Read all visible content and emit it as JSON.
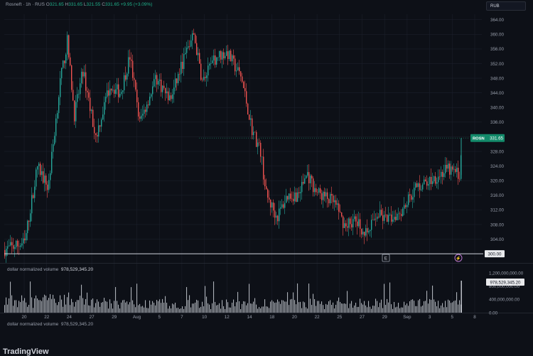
{
  "header": {
    "symbol": "Rosneft · 1h · RUS",
    "ohlc": [
      {
        "k": "O",
        "v": "321.65"
      },
      {
        "k": "H",
        "v": "331.65"
      },
      {
        "k": "L",
        "v": "321.55"
      },
      {
        "k": "C",
        "v": "331.65"
      }
    ],
    "change": "+9.95 (+3.09%)",
    "currency": "RUB"
  },
  "volume": {
    "label": "dollar normalized volume",
    "value": "978,529,345.20",
    "label2": "dollar normalized volume",
    "value2": "978,529,345.20",
    "ticks": [
      "1,200,000,000.00",
      "800,000,000.00",
      "400,000,000.00",
      "0.00"
    ]
  },
  "logo": "TradingView",
  "colors": {
    "up": "#26a69a",
    "down": "#ef5350",
    "background": "#0d1017",
    "grid": "#1b1f2b",
    "volume": "#c9ccd4",
    "last_price_badge": "#138a6a"
  },
  "chart_data": {
    "type": "candlestick",
    "title": "Rosneft · 1h · RUS",
    "y_ticks": [
      304,
      308,
      312,
      316,
      320,
      324,
      328,
      332,
      336,
      340,
      344,
      348,
      352,
      356,
      360,
      364
    ],
    "ylim": [
      297.5,
      365.5
    ],
    "x_ticks": [
      "20",
      "22",
      "24",
      "27",
      "29",
      "Aug",
      "5",
      "7",
      "10",
      "12",
      "14",
      "18",
      "20",
      "22",
      "25",
      "27",
      "29",
      "Sep",
      "3",
      "5",
      "8"
    ],
    "price_path": [
      {
        "t": 0,
        "p": 301
      },
      {
        "t": 30,
        "p": 303
      },
      {
        "t": 48,
        "p": 324
      },
      {
        "t": 63,
        "p": 318
      },
      {
        "t": 80,
        "p": 347
      },
      {
        "t": 90,
        "p": 358
      },
      {
        "t": 100,
        "p": 338
      },
      {
        "t": 112,
        "p": 350
      },
      {
        "t": 130,
        "p": 332
      },
      {
        "t": 150,
        "p": 346
      },
      {
        "t": 165,
        "p": 344
      },
      {
        "t": 178,
        "p": 354
      },
      {
        "t": 192,
        "p": 336
      },
      {
        "t": 215,
        "p": 348
      },
      {
        "t": 235,
        "p": 342
      },
      {
        "t": 255,
        "p": 354
      },
      {
        "t": 268,
        "p": 360
      },
      {
        "t": 280,
        "p": 347
      },
      {
        "t": 300,
        "p": 354
      },
      {
        "t": 315,
        "p": 355
      },
      {
        "t": 335,
        "p": 348
      },
      {
        "t": 350,
        "p": 334
      },
      {
        "t": 362,
        "p": 328
      },
      {
        "t": 370,
        "p": 316
      },
      {
        "t": 385,
        "p": 310
      },
      {
        "t": 400,
        "p": 316
      },
      {
        "t": 415,
        "p": 316
      },
      {
        "t": 427,
        "p": 322
      },
      {
        "t": 440,
        "p": 317
      },
      {
        "t": 465,
        "p": 314
      },
      {
        "t": 480,
        "p": 308
      },
      {
        "t": 495,
        "p": 309
      },
      {
        "t": 512,
        "p": 305
      },
      {
        "t": 525,
        "p": 311
      },
      {
        "t": 540,
        "p": 309
      },
      {
        "t": 560,
        "p": 312
      },
      {
        "t": 580,
        "p": 318
      },
      {
        "t": 600,
        "p": 320
      },
      {
        "t": 625,
        "p": 323
      },
      {
        "t": 643,
        "p": 321.65
      },
      {
        "t": 645,
        "p": 331.65
      }
    ],
    "last_price": {
      "label": "ROSN",
      "value": "331.65",
      "y": 331.65
    },
    "horizontal_line": {
      "label": "300.00",
      "y": 300.0
    },
    "markers": [
      {
        "label": "E"
      },
      {
        "label": "⚡"
      }
    ],
    "volume_ylim": [
      0,
      1350000000
    ]
  }
}
